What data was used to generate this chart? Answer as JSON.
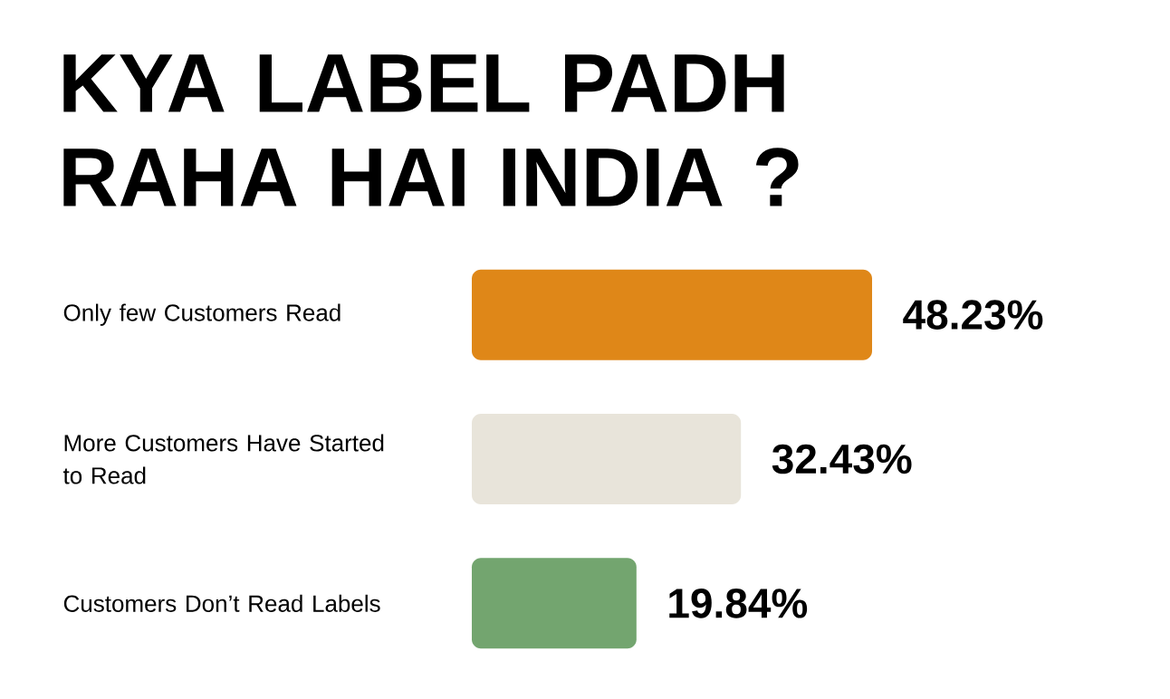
{
  "chart_data": {
    "type": "bar",
    "orientation": "horizontal",
    "title": "KYA LABEL PADH RAHA HAI INDIA ?",
    "categories": [
      "Only few Customers Read",
      "More Customers Have Started to Read",
      "Customers Don’t Read Labels"
    ],
    "values": [
      48.23,
      32.43,
      19.84
    ],
    "colors": [
      "#df8718",
      "#e8e4da",
      "#73a56f"
    ],
    "value_labels": [
      "48.23%",
      "32.43%",
      "19.84%"
    ]
  }
}
